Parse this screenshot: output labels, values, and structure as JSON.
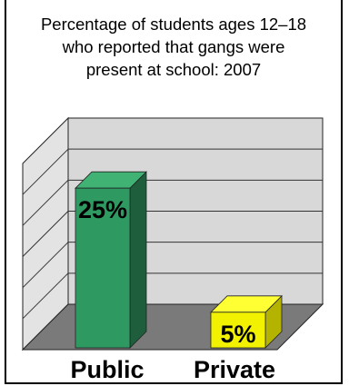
{
  "chart_data": {
    "type": "bar",
    "title_lines": [
      "Percentage of students ages 12–18",
      "who reported that gangs were",
      "present at school: 2007"
    ],
    "categories": [
      "Public",
      "Private"
    ],
    "values": [
      25,
      5
    ],
    "value_labels": [
      "25%",
      "5%"
    ],
    "ylim": [
      0,
      30
    ],
    "grid": true,
    "colors": {
      "public_front": "#2e9a62",
      "public_side": "#1f5e3c",
      "public_top": "#3fb274",
      "private_front": "#f2f200",
      "private_side": "#b3b300",
      "private_top": "#ffff33",
      "wall": "#d8d8d8",
      "floor": "#7a7a7a"
    }
  }
}
